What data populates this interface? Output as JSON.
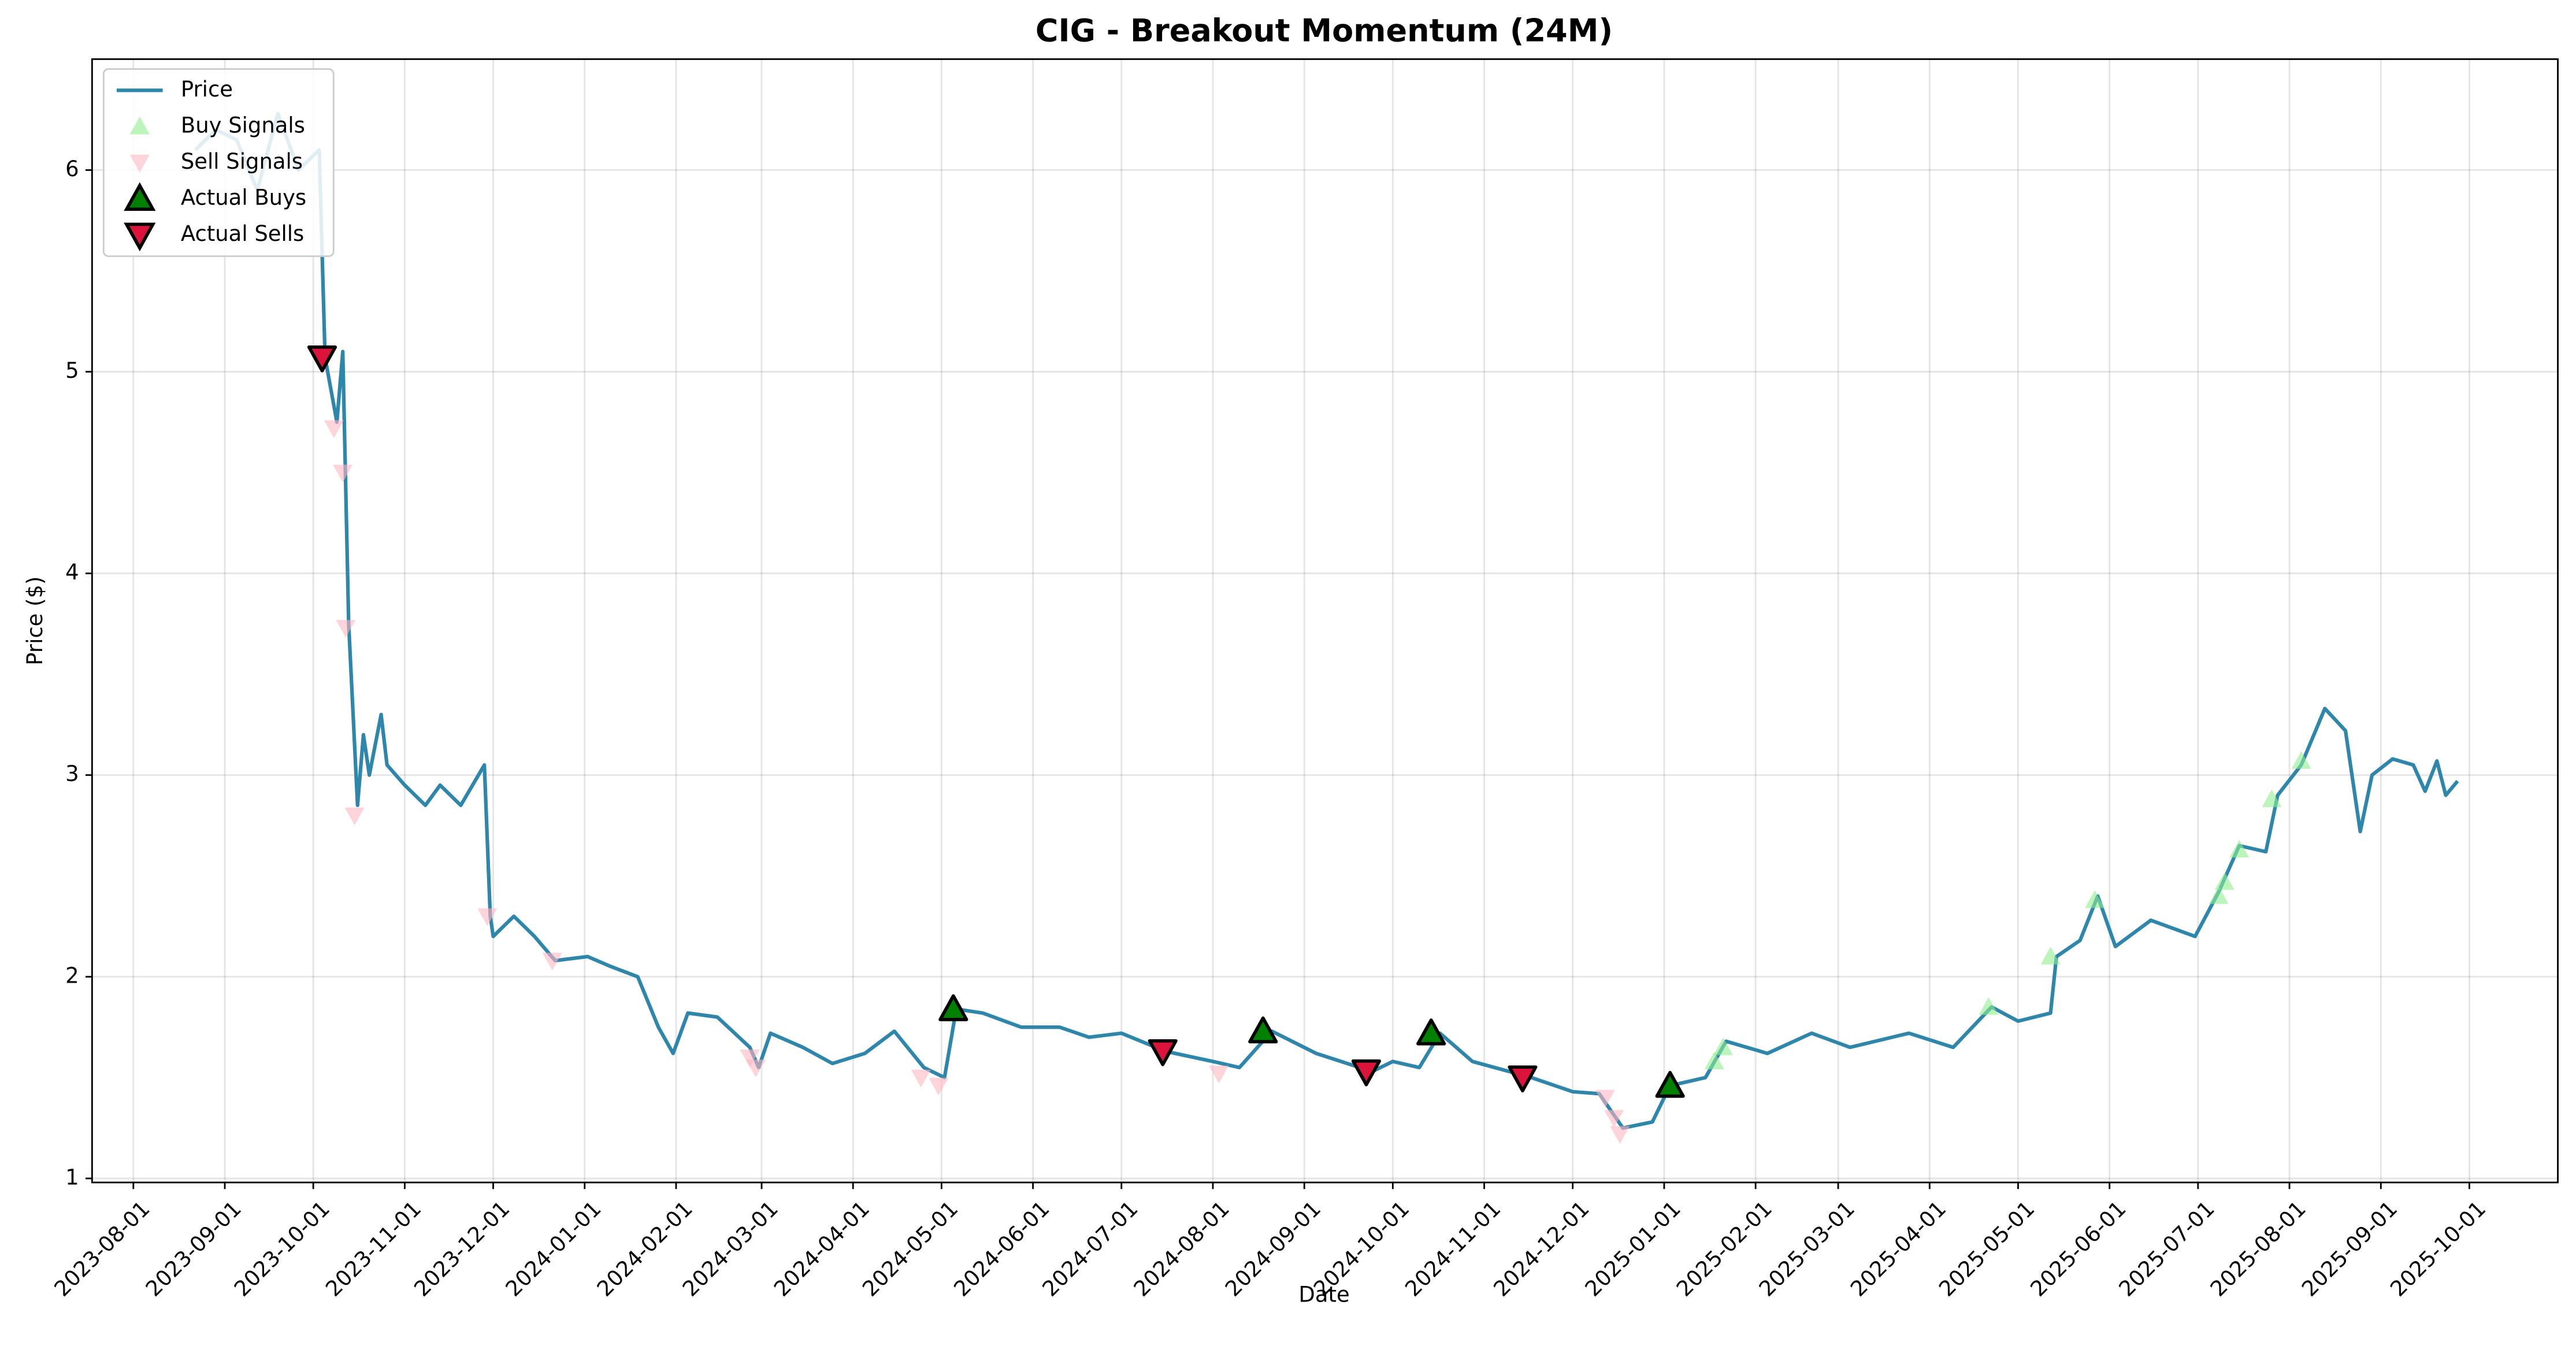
{
  "chart_data": {
    "type": "line",
    "title": "CIG - Breakout Momentum (24M)",
    "xlabel": "Date",
    "ylabel": "Price ($)",
    "xlim": [
      "2023-07-18",
      "2025-10-31"
    ],
    "ylim": [
      0.98,
      6.55
    ],
    "xticks": [
      "2023-08-01",
      "2023-09-01",
      "2023-10-01",
      "2023-11-01",
      "2023-12-01",
      "2024-01-01",
      "2024-02-01",
      "2024-03-01",
      "2024-04-01",
      "2024-05-01",
      "2024-06-01",
      "2024-07-01",
      "2024-08-01",
      "2024-09-01",
      "2024-10-01",
      "2024-11-01",
      "2024-12-01",
      "2025-01-01",
      "2025-02-01",
      "2025-03-01",
      "2025-04-01",
      "2025-05-01",
      "2025-06-01",
      "2025-07-01",
      "2025-08-01",
      "2025-09-01",
      "2025-10-01"
    ],
    "yticks": [
      1,
      2,
      3,
      4,
      5,
      6
    ],
    "grid": true,
    "legend": "upper left",
    "series": [
      {
        "name": "Price",
        "kind": "line",
        "color": "#2e86ab",
        "x": [
          "2023-08-22",
          "2023-08-29",
          "2023-09-05",
          "2023-09-12",
          "2023-09-19",
          "2023-09-26",
          "2023-10-03",
          "2023-10-05",
          "2023-10-09",
          "2023-10-11",
          "2023-10-13",
          "2023-10-16",
          "2023-10-18",
          "2023-10-20",
          "2023-10-24",
          "2023-10-26",
          "2023-11-01",
          "2023-11-08",
          "2023-11-13",
          "2023-11-20",
          "2023-11-28",
          "2023-11-30",
          "2023-12-01",
          "2023-12-08",
          "2023-12-15",
          "2023-12-22",
          "2024-01-02",
          "2024-01-10",
          "2024-01-19",
          "2024-01-26",
          "2024-01-31",
          "2024-02-05",
          "2024-02-15",
          "2024-02-26",
          "2024-02-29",
          "2024-03-04",
          "2024-03-15",
          "2024-03-25",
          "2024-04-05",
          "2024-04-15",
          "2024-04-25",
          "2024-05-02",
          "2024-05-06",
          "2024-05-15",
          "2024-05-28",
          "2024-06-10",
          "2024-06-20",
          "2024-07-01",
          "2024-07-16",
          "2024-08-01",
          "2024-08-10",
          "2024-08-21",
          "2024-09-05",
          "2024-09-24",
          "2024-10-01",
          "2024-10-10",
          "2024-10-17",
          "2024-10-28",
          "2024-11-17",
          "2024-12-01",
          "2024-12-10",
          "2024-12-18",
          "2024-12-28",
          "2025-01-03",
          "2025-01-15",
          "2025-01-22",
          "2025-02-05",
          "2025-02-20",
          "2025-03-05",
          "2025-03-25",
          "2025-04-09",
          "2025-04-22",
          "2025-05-01",
          "2025-05-12",
          "2025-05-14",
          "2025-05-22",
          "2025-05-28",
          "2025-06-03",
          "2025-06-15",
          "2025-06-30",
          "2025-07-08",
          "2025-07-15",
          "2025-07-24",
          "2025-07-28",
          "2025-08-05",
          "2025-08-13",
          "2025-08-20",
          "2025-08-25",
          "2025-08-29",
          "2025-09-05",
          "2025-09-12",
          "2025-09-16",
          "2025-09-20",
          "2025-09-23",
          "2025-09-27"
        ],
        "values": [
          6.1,
          6.2,
          6.15,
          5.9,
          6.28,
          6.0,
          6.1,
          5.07,
          4.75,
          5.1,
          3.75,
          2.85,
          3.2,
          3.0,
          3.3,
          3.05,
          2.95,
          2.85,
          2.95,
          2.85,
          3.05,
          2.3,
          2.2,
          2.3,
          2.2,
          2.08,
          2.1,
          2.05,
          2.0,
          1.75,
          1.62,
          1.82,
          1.8,
          1.65,
          1.55,
          1.72,
          1.65,
          1.57,
          1.62,
          1.73,
          1.55,
          1.5,
          1.84,
          1.82,
          1.75,
          1.75,
          1.7,
          1.72,
          1.63,
          1.58,
          1.55,
          1.73,
          1.62,
          1.53,
          1.58,
          1.55,
          1.72,
          1.58,
          1.5,
          1.43,
          1.42,
          1.25,
          1.28,
          1.46,
          1.5,
          1.68,
          1.62,
          1.72,
          1.65,
          1.72,
          1.65,
          1.85,
          1.78,
          1.82,
          2.1,
          2.18,
          2.4,
          2.15,
          2.28,
          2.2,
          2.42,
          2.65,
          2.62,
          2.9,
          3.05,
          3.33,
          3.22,
          2.72,
          3.0,
          3.08,
          3.05,
          2.92,
          3.07,
          2.9,
          2.97
        ]
      },
      {
        "name": "Buy Signals",
        "kind": "scatter",
        "marker": "up",
        "color": "#90ee90",
        "alpha": 0.6,
        "x": [
          "2025-01-18",
          "2025-01-21",
          "2025-04-21",
          "2025-05-12",
          "2025-05-27",
          "2025-07-08",
          "2025-07-10",
          "2025-07-15",
          "2025-07-26",
          "2025-08-05"
        ],
        "values": [
          1.58,
          1.65,
          1.85,
          2.1,
          2.38,
          2.4,
          2.47,
          2.63,
          2.88,
          3.07
        ]
      },
      {
        "name": "Sell Signals",
        "kind": "scatter",
        "marker": "down",
        "color": "#ffb6c1",
        "alpha": 0.6,
        "x": [
          "2023-10-08",
          "2023-10-11",
          "2023-10-12",
          "2023-10-15",
          "2023-11-29",
          "2023-12-21",
          "2024-02-26",
          "2024-02-28",
          "2024-04-24",
          "2024-04-30",
          "2024-08-03",
          "2024-12-12",
          "2024-12-15",
          "2024-12-17"
        ],
        "values": [
          4.72,
          4.5,
          3.73,
          2.8,
          2.3,
          2.08,
          1.6,
          1.55,
          1.5,
          1.46,
          1.52,
          1.4,
          1.3,
          1.22
        ]
      },
      {
        "name": "Actual Buys",
        "kind": "scatter",
        "marker": "up",
        "color": "#008000",
        "alpha": 1,
        "x": [
          "2024-05-05",
          "2024-08-18",
          "2024-10-14",
          "2025-01-03"
        ],
        "values": [
          1.84,
          1.73,
          1.72,
          1.46
        ]
      },
      {
        "name": "Actual Sells",
        "kind": "scatter",
        "marker": "down",
        "color": "#dc143c",
        "alpha": 1,
        "x": [
          "2023-10-04",
          "2024-07-15",
          "2024-09-22",
          "2024-11-14"
        ],
        "values": [
          5.07,
          1.63,
          1.53,
          1.5
        ]
      }
    ]
  }
}
